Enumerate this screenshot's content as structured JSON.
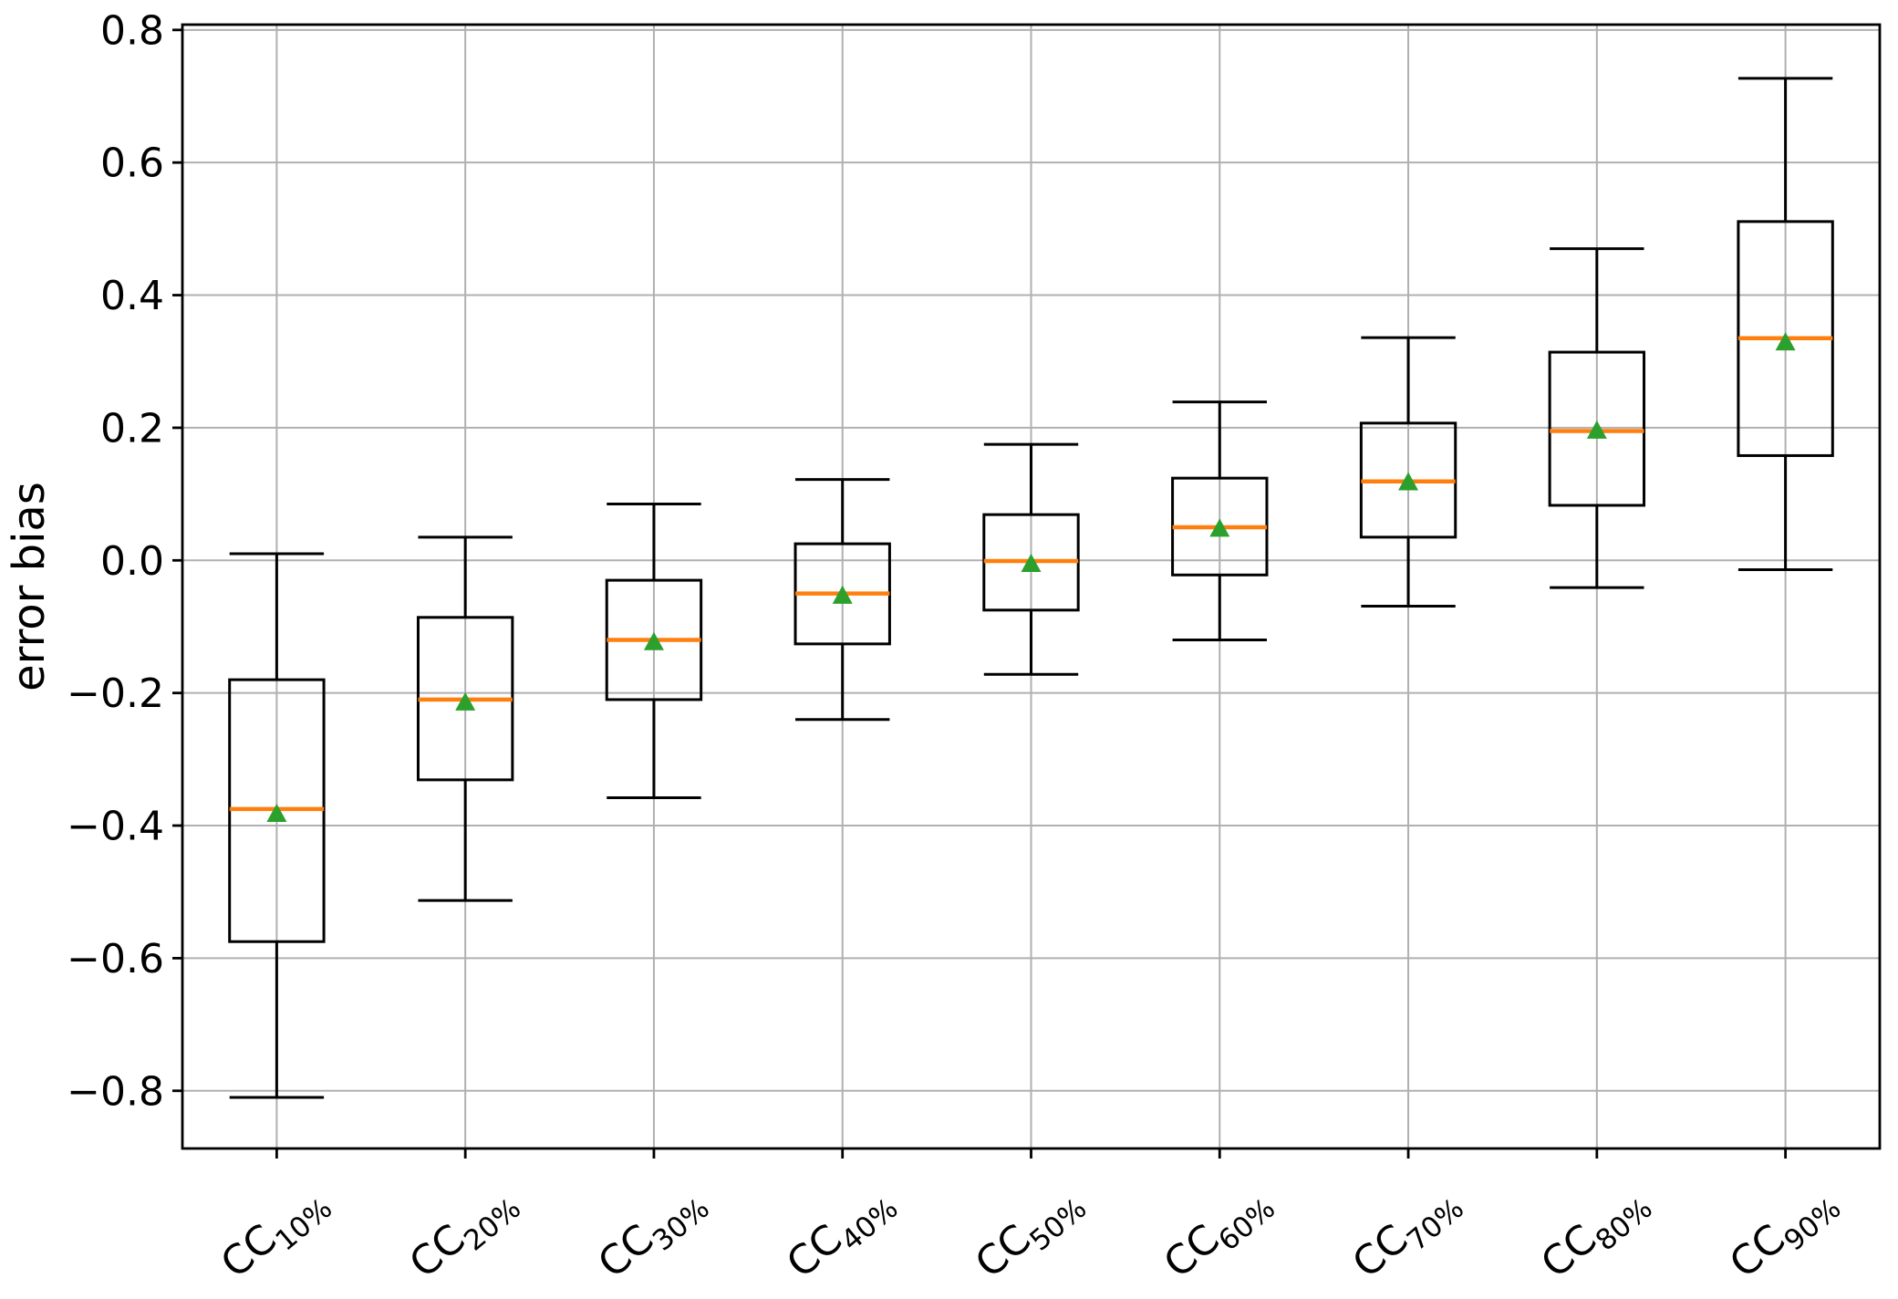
{
  "chart_data": {
    "type": "box",
    "title": "",
    "xlabel": "",
    "ylabel": "error bias",
    "grid": true,
    "legend": false,
    "ylim": [
      -0.887,
      0.808
    ],
    "yticks": [
      {
        "value": -0.8,
        "label": "−0.8"
      },
      {
        "value": -0.6,
        "label": "−0.6"
      },
      {
        "value": -0.4,
        "label": "−0.4"
      },
      {
        "value": -0.2,
        "label": "−0.2"
      },
      {
        "value": 0.0,
        "label": "0.0"
      },
      {
        "value": 0.2,
        "label": "0.2"
      },
      {
        "value": 0.4,
        "label": "0.4"
      },
      {
        "value": 0.6,
        "label": "0.6"
      },
      {
        "value": 0.8,
        "label": "0.8"
      }
    ],
    "categories": [
      "CC10%",
      "CC20%",
      "CC30%",
      "CC40%",
      "CC50%",
      "CC60%",
      "CC70%",
      "CC80%",
      "CC90%"
    ],
    "x_tick_rotation_deg": 40,
    "boxes": [
      {
        "label": "CC10%",
        "prefix": "CC",
        "subscript": "10%",
        "whislo": -0.81,
        "q1": -0.575,
        "med": -0.375,
        "mean": -0.382,
        "q3": -0.18,
        "whishi": 0.01
      },
      {
        "label": "CC20%",
        "prefix": "CC",
        "subscript": "20%",
        "whislo": -0.513,
        "q1": -0.331,
        "med": -0.21,
        "mean": -0.214,
        "q3": -0.086,
        "whishi": 0.035
      },
      {
        "label": "CC30%",
        "prefix": "CC",
        "subscript": "30%",
        "whislo": -0.358,
        "q1": -0.21,
        "med": -0.12,
        "mean": -0.123,
        "q3": -0.03,
        "whishi": 0.085
      },
      {
        "label": "CC40%",
        "prefix": "CC",
        "subscript": "40%",
        "whislo": -0.24,
        "q1": -0.126,
        "med": -0.05,
        "mean": -0.053,
        "q3": 0.025,
        "whishi": 0.122
      },
      {
        "label": "CC50%",
        "prefix": "CC",
        "subscript": "50%",
        "whislo": -0.172,
        "q1": -0.075,
        "med": -0.001,
        "mean": -0.005,
        "q3": 0.069,
        "whishi": 0.175
      },
      {
        "label": "CC60%",
        "prefix": "CC",
        "subscript": "60%",
        "whislo": -0.12,
        "q1": -0.022,
        "med": 0.05,
        "mean": 0.048,
        "q3": 0.124,
        "whishi": 0.239
      },
      {
        "label": "CC70%",
        "prefix": "CC",
        "subscript": "70%",
        "whislo": -0.069,
        "q1": 0.035,
        "med": 0.119,
        "mean": 0.118,
        "q3": 0.207,
        "whishi": 0.336
      },
      {
        "label": "CC80%",
        "prefix": "CC",
        "subscript": "80%",
        "whislo": -0.041,
        "q1": 0.083,
        "med": 0.195,
        "mean": 0.196,
        "q3": 0.314,
        "whishi": 0.47
      },
      {
        "label": "CC90%",
        "prefix": "CC",
        "subscript": "90%",
        "whislo": -0.014,
        "q1": 0.158,
        "med": 0.335,
        "mean": 0.329,
        "q3": 0.511,
        "whishi": 0.727
      }
    ],
    "colors": {
      "box_line": "#000000",
      "median": "#ff7f0e",
      "mean_marker": "#2ca02c",
      "grid": "#b0b0b0",
      "spine": "#000000",
      "text": "#000000",
      "background": "#ffffff"
    }
  }
}
